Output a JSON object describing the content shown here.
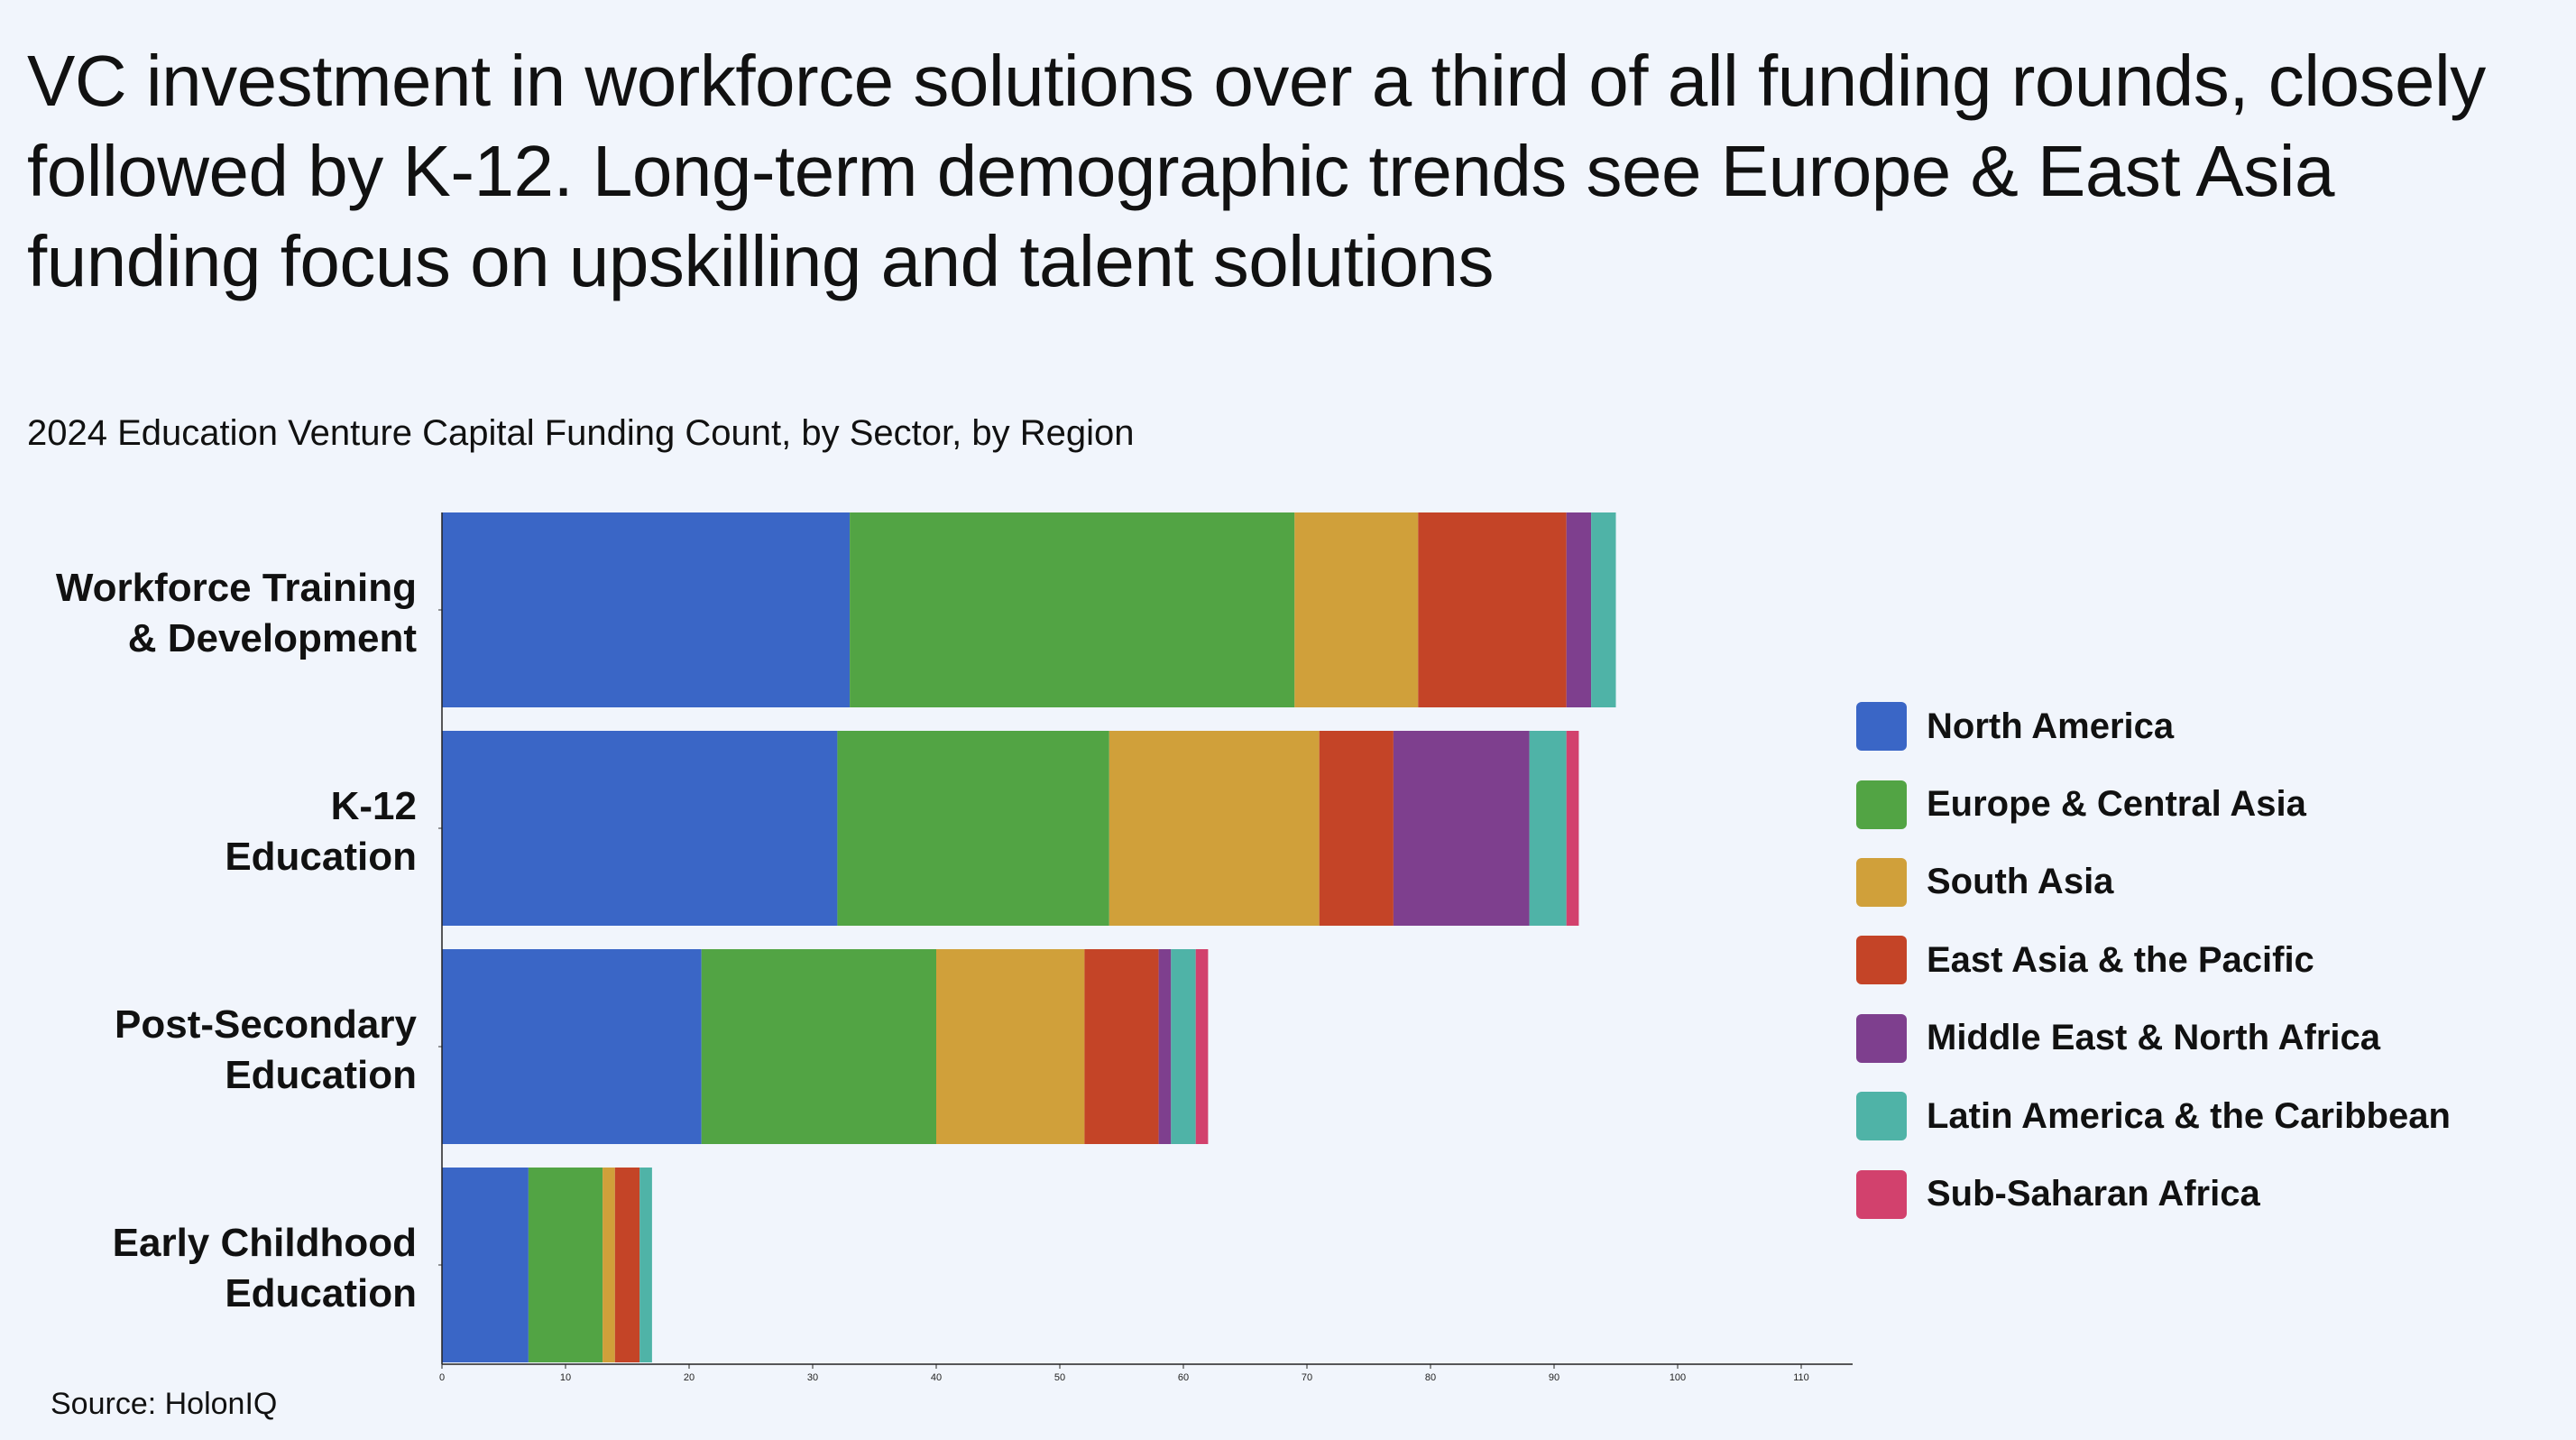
{
  "headline": "VC investment in workforce solutions over a third of all funding rounds, closely followed by K-12. Long-term demographic trends see Europe & East Asia funding focus on upskilling and talent solutions",
  "subtitle": "2024 Education Venture Capital Funding Count, by Sector, by Region",
  "source": "Source: HolonIQ",
  "chart_data": {
    "type": "bar",
    "orientation": "horizontal",
    "stacked": true,
    "title": "2024 Education Venture Capital Funding Count, by Sector, by Region",
    "xlabel": "",
    "ylabel": "",
    "xlim": [
      0,
      114
    ],
    "x_ticks": [
      0,
      10,
      20,
      30,
      40,
      50,
      60,
      70,
      80,
      90,
      100,
      110
    ],
    "grid": false,
    "legend_position": "right",
    "categories": [
      [
        "Workforce Training",
        "& Development"
      ],
      [
        "K-12",
        "Education"
      ],
      [
        "Post-Secondary",
        "Education"
      ],
      [
        "Early Childhood",
        "Education"
      ]
    ],
    "series": [
      {
        "name": "North America",
        "color": "#3a66c6",
        "values": [
          33,
          32,
          21,
          7
        ]
      },
      {
        "name": "Europe & Central Asia",
        "color": "#52a444",
        "values": [
          36,
          22,
          19,
          6
        ]
      },
      {
        "name": "South Asia",
        "color": "#d0a03a",
        "values": [
          10,
          17,
          12,
          1
        ]
      },
      {
        "name": "East Asia & the Pacific",
        "color": "#c44427",
        "values": [
          12,
          6,
          6,
          2
        ]
      },
      {
        "name": "Middle East & North Africa",
        "color": "#7e3f8e",
        "values": [
          2,
          11,
          1,
          0
        ]
      },
      {
        "name": "Latin America & the Caribbean",
        "color": "#4fb3a7",
        "values": [
          2,
          3,
          2,
          1
        ]
      },
      {
        "name": "Sub-Saharan Africa",
        "color": "#d2416d",
        "values": [
          0,
          1,
          1,
          0
        ]
      }
    ]
  }
}
